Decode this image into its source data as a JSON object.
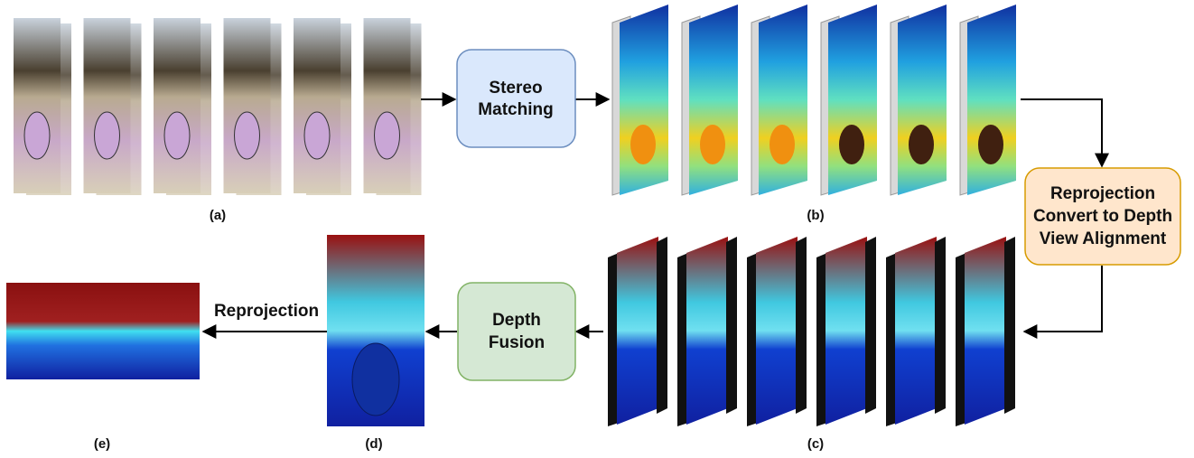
{
  "nodes": [
    {
      "label_lines": [
        "Stereo",
        "Matching"
      ]
    },
    {
      "label_lines": [
        "Reprojection",
        "Convert to Depth",
        "View Alignment"
      ]
    },
    {
      "label_lines": [
        "Depth",
        "Fusion"
      ]
    }
  ],
  "edge_labels": [
    "Reprojection"
  ],
  "panel_labels": [
    "(a)",
    "(b)",
    "(c)",
    "(d)",
    "(e)"
  ]
}
